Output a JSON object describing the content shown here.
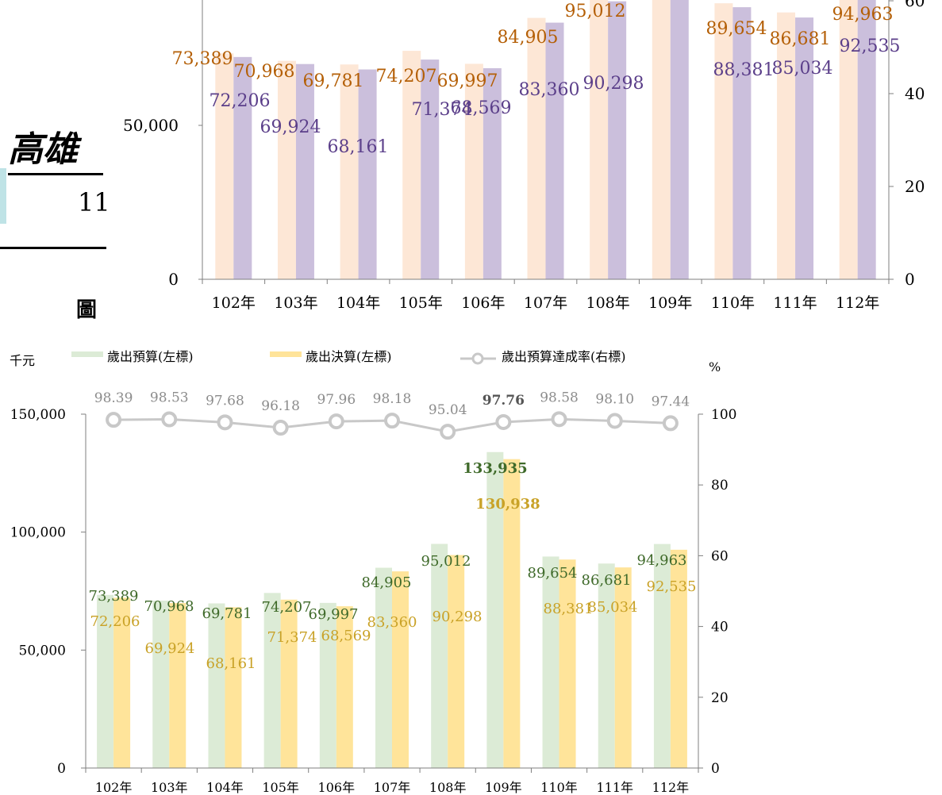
{
  "page": {
    "title": "高雄",
    "subtitle": "11",
    "figure_label": "圖"
  },
  "colors": {
    "top_budget": "#fde7d6",
    "top_final": "#cbbfdc",
    "top_budget_label": "#b45f06",
    "top_final_label": "#5b3f8a",
    "bottom_budget": "#dcebd6",
    "bottom_final": "#ffe49a",
    "bottom_budget_label": "#3f6a2a",
    "bottom_final_label": "#c9a227",
    "rate_line": "#c8c8c8",
    "axis": "#7f7f7f"
  },
  "chart_data": [
    {
      "type": "bar",
      "note_visibility": "partially cropped at top of image",
      "categories": [
        "102年",
        "103年",
        "104年",
        "105年",
        "106年",
        "107年",
        "108年",
        "109年",
        "110年",
        "111年",
        "112年"
      ],
      "series": [
        {
          "values": [
            73389,
            70968,
            69781,
            74207,
            69997,
            84905,
            95012,
            133935,
            89654,
            86681,
            94963
          ],
          "labels": [
            "73,389",
            "70,968",
            "69,781",
            "74,207",
            "69,997",
            "84,905",
            "95,012",
            "",
            "89,654",
            "86,681",
            "94,963"
          ]
        },
        {
          "values": [
            72206,
            69924,
            68161,
            71374,
            68569,
            83360,
            90298,
            130938,
            88381,
            85034,
            92535
          ],
          "labels": [
            "72,206",
            "69,924",
            "68,161",
            "71,374",
            "68,569",
            "83,360",
            "90,298",
            "",
            "88,381",
            "85,034",
            "92,535"
          ]
        }
      ],
      "left_ticks": [
        "0",
        "50,000"
      ],
      "right_ticks": [
        "0",
        "20",
        "40",
        "60"
      ],
      "ylim": [
        0,
        150000
      ],
      "y2lim": [
        0,
        100
      ]
    },
    {
      "type": "bar",
      "categories": [
        "102年",
        "103年",
        "104年",
        "105年",
        "106年",
        "107年",
        "108年",
        "109年",
        "110年",
        "111年",
        "112年"
      ],
      "legend": {
        "unit_left": "千元",
        "unit_right": "%",
        "items": [
          "歲出預算(左標)",
          "歲出決算(左標)",
          "歲出預算達成率(右標)"
        ],
        "placement": "top"
      },
      "series": [
        {
          "name": "歲出預算(左標)",
          "values": [
            73389,
            70968,
            69781,
            74207,
            69997,
            84905,
            95012,
            133935,
            89654,
            86681,
            94963
          ],
          "labels": [
            "73,389",
            "70,968",
            "69,781",
            "74,207",
            "69,997",
            "84,905",
            "95,012",
            "133,935",
            "89,654",
            "86,681",
            "94,963"
          ]
        },
        {
          "name": "歲出決算(左標)",
          "values": [
            72206,
            69924,
            68161,
            71374,
            68569,
            83360,
            90298,
            130938,
            88381,
            85034,
            92535
          ],
          "labels": [
            "72,206",
            "69,924",
            "68,161",
            "71,374",
            "68,569",
            "83,360",
            "90,298",
            "130,938",
            "88,381",
            "85,034",
            "92,535"
          ]
        },
        {
          "name": "歲出預算達成率(右標)",
          "type": "line",
          "values": [
            98.39,
            98.53,
            97.68,
            96.18,
            97.96,
            98.18,
            95.04,
            97.76,
            98.58,
            98.1,
            97.44
          ],
          "labels": [
            "98.39",
            "98.53",
            "97.68",
            "96.18",
            "97.96",
            "98.18",
            "95.04",
            "97.76",
            "98.58",
            "98.10",
            "97.44"
          ]
        }
      ],
      "left_ticks": [
        "0",
        "50,000",
        "100,000",
        "150,000"
      ],
      "right_ticks": [
        "0",
        "20",
        "40",
        "60",
        "80",
        "100"
      ],
      "ylim": [
        0,
        150000
      ],
      "y2lim": [
        0,
        100
      ],
      "grid": false
    }
  ]
}
